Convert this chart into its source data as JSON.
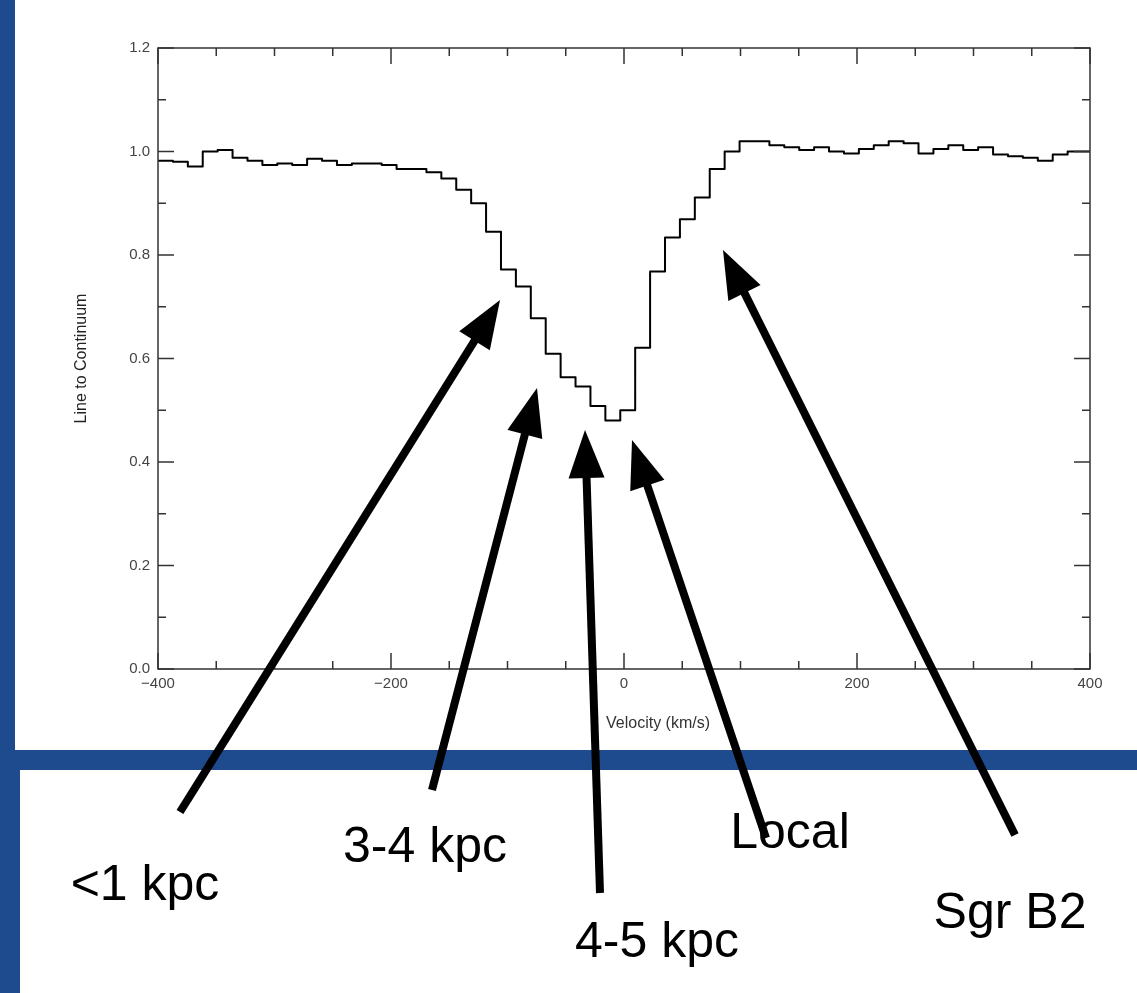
{
  "chart_data": {
    "type": "step",
    "xlabel": "Velocity (km/s)",
    "ylabel": "Line to Continuum",
    "color": "#000000",
    "legend": false,
    "grid": false,
    "x": [
      -400,
      -387.2,
      -374.4,
      -361.6,
      -348.8,
      -336,
      -323.2,
      -310.4,
      -297.6,
      -284.8,
      -272,
      -259.2,
      -246.4,
      -233.6,
      -220.8,
      -208,
      -195.2,
      -182.4,
      -169.6,
      -156.8,
      -144,
      -131.2,
      -118.4,
      -105.6,
      -92.8,
      -80,
      -67.2,
      -54.4,
      -41.6,
      -28.8,
      -16,
      -3.2,
      9.6,
      22.4,
      35.2,
      48,
      60.8,
      73.6,
      86.4,
      99.2,
      112,
      124.8,
      137.6,
      150.4,
      163.2,
      176,
      188.8,
      201.6,
      214.4,
      227.2,
      240,
      252.8,
      265.6,
      278.4,
      291.2,
      304,
      316.8,
      329.6,
      342.4,
      355.2,
      368,
      380.8,
      400
    ],
    "values": [
      0.982,
      0.98,
      0.971,
      1.0,
      1.003,
      0.988,
      0.982,
      0.974,
      0.977,
      0.974,
      0.986,
      0.982,
      0.974,
      0.977,
      0.977,
      0.974,
      0.966,
      0.966,
      0.96,
      0.948,
      0.926,
      0.9,
      0.845,
      0.772,
      0.739,
      0.678,
      0.609,
      0.564,
      0.546,
      0.508,
      0.48,
      0.5,
      0.621,
      0.768,
      0.834,
      0.869,
      0.911,
      0.966,
      1.0,
      1.02,
      1.02,
      1.012,
      1.008,
      1.003,
      1.008,
      1.0,
      0.996,
      1.005,
      1.012,
      1.02,
      1.016,
      0.996,
      1.005,
      1.012,
      1.003,
      1.008,
      0.994,
      0.991,
      0.988,
      0.982,
      0.994,
      1.0,
      1.0
    ],
    "xlim": [
      -400,
      400
    ],
    "xticks": [
      -400,
      {
        "value": -350,
        "label": null
      },
      {
        "value": -300,
        "label": null
      },
      {
        "value": -250,
        "label": null
      },
      -200,
      {
        "value": -150,
        "label": null
      },
      {
        "value": -100,
        "label": null
      },
      {
        "value": -50,
        "label": null
      },
      0,
      {
        "value": 50,
        "label": null
      },
      {
        "value": 100,
        "label": null
      },
      {
        "value": 150,
        "label": null
      },
      200,
      {
        "value": 250,
        "label": null
      },
      {
        "value": 300,
        "label": null
      },
      {
        "value": 350,
        "label": null
      },
      400
    ],
    "ylim": [
      0,
      1.2
    ],
    "yticks": [
      {
        "value": 0,
        "label": "0.0"
      },
      {
        "value": 0.1,
        "label": null
      },
      {
        "value": 0.2,
        "label": "0.2"
      },
      {
        "value": 0.3,
        "label": null
      },
      {
        "value": 0.4,
        "label": "0.4"
      },
      {
        "value": 0.5,
        "label": null
      },
      {
        "value": 0.6,
        "label": "0.6"
      },
      {
        "value": 0.7,
        "label": null
      },
      {
        "value": 0.8,
        "label": "0.8"
      },
      {
        "value": 0.9,
        "label": null
      },
      {
        "value": 1.0,
        "label": "1.0"
      },
      {
        "value": 1.1,
        "label": null
      },
      {
        "value": 1.2,
        "label": "1.2"
      }
    ],
    "annotations": [
      "<1 kpc",
      "3-4 kpc",
      "4-5 kpc",
      "Local",
      "Sgr B2"
    ]
  }
}
